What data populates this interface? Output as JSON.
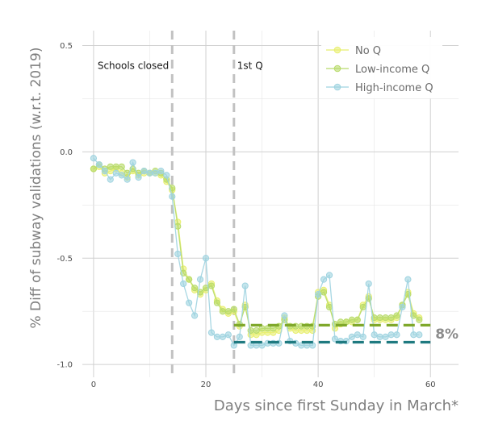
{
  "chart_data": {
    "type": "line",
    "xlabel": "Days since first Sunday in March*",
    "ylabel": "% Diff of subway validations (w.r.t. 2019)",
    "xlim": [
      -2,
      65
    ],
    "ylim": [
      -1.06,
      0.57
    ],
    "xticks": [
      0,
      20,
      40,
      60
    ],
    "xtick_labels": [
      "0",
      "20",
      "40",
      "60"
    ],
    "yticks": [
      -1.0,
      -0.5,
      0.0,
      0.5
    ],
    "ytick_labels": [
      "-1.0",
      "-0.5",
      "0.0",
      "0.5"
    ],
    "grid": true,
    "legend_position": "top-right",
    "vlines": [
      {
        "x": 14,
        "label": "Schools closed"
      },
      {
        "x": 25,
        "label": "1st Q"
      }
    ],
    "hlines": [
      {
        "y": -0.815,
        "x0": 25,
        "x1": 60,
        "color": "#7fa82b"
      },
      {
        "y": -0.895,
        "x0": 25,
        "x1": 60,
        "color": "#1f7a80"
      }
    ],
    "gap_label": "8%",
    "x": [
      0,
      1,
      2,
      3,
      4,
      5,
      6,
      7,
      8,
      9,
      10,
      11,
      12,
      13,
      14,
      15,
      16,
      17,
      18,
      19,
      20,
      21,
      22,
      23,
      24,
      25,
      26,
      27,
      28,
      29,
      30,
      31,
      32,
      33,
      34,
      35,
      36,
      37,
      38,
      39,
      40,
      41,
      42,
      43,
      44,
      45,
      46,
      47,
      48,
      49,
      50,
      51,
      52,
      53,
      54,
      55,
      56,
      57,
      58
    ],
    "series": [
      {
        "name": "No Q",
        "color": "#e8ef6e",
        "values": [
          -0.08,
          -0.07,
          -0.1,
          -0.09,
          -0.08,
          -0.1,
          -0.12,
          -0.09,
          -0.11,
          -0.1,
          -0.1,
          -0.1,
          -0.11,
          -0.14,
          -0.18,
          -0.33,
          -0.55,
          -0.6,
          -0.65,
          -0.67,
          -0.65,
          -0.62,
          -0.7,
          -0.74,
          -0.76,
          -0.75,
          -0.82,
          -0.72,
          -0.86,
          -0.86,
          -0.85,
          -0.85,
          -0.85,
          -0.84,
          -0.78,
          -0.83,
          -0.84,
          -0.84,
          -0.84,
          -0.84,
          -0.66,
          -0.65,
          -0.72,
          -0.83,
          -0.81,
          -0.8,
          -0.8,
          -0.79,
          -0.72,
          -0.68,
          -0.79,
          -0.79,
          -0.79,
          -0.79,
          -0.78,
          -0.72,
          -0.66,
          -0.76,
          -0.78
        ]
      },
      {
        "name": "Low-income Q",
        "color": "#b8db6a",
        "values": [
          -0.08,
          -0.06,
          -0.08,
          -0.07,
          -0.07,
          -0.07,
          -0.1,
          -0.08,
          -0.1,
          -0.09,
          -0.1,
          -0.09,
          -0.1,
          -0.13,
          -0.17,
          -0.35,
          -0.57,
          -0.6,
          -0.64,
          -0.66,
          -0.64,
          -0.63,
          -0.71,
          -0.75,
          -0.75,
          -0.74,
          -0.81,
          -0.73,
          -0.84,
          -0.84,
          -0.83,
          -0.83,
          -0.83,
          -0.82,
          -0.79,
          -0.82,
          -0.82,
          -0.82,
          -0.82,
          -0.82,
          -0.68,
          -0.66,
          -0.73,
          -0.81,
          -0.8,
          -0.8,
          -0.79,
          -0.79,
          -0.73,
          -0.69,
          -0.78,
          -0.78,
          -0.78,
          -0.78,
          -0.77,
          -0.72,
          -0.67,
          -0.77,
          -0.79
        ]
      },
      {
        "name": "High-income Q",
        "color": "#9fd3e0",
        "values": [
          -0.03,
          -0.06,
          -0.09,
          -0.13,
          -0.1,
          -0.11,
          -0.13,
          -0.05,
          -0.12,
          -0.09,
          -0.1,
          -0.1,
          -0.09,
          -0.11,
          -0.21,
          -0.48,
          -0.62,
          -0.71,
          -0.77,
          -0.6,
          -0.5,
          -0.85,
          -0.87,
          -0.87,
          -0.86,
          -0.91,
          -0.87,
          -0.63,
          -0.91,
          -0.91,
          -0.91,
          -0.9,
          -0.9,
          -0.9,
          -0.77,
          -0.89,
          -0.9,
          -0.91,
          -0.91,
          -0.91,
          -0.67,
          -0.6,
          -0.58,
          -0.88,
          -0.89,
          -0.89,
          -0.87,
          -0.86,
          -0.87,
          -0.62,
          -0.86,
          -0.87,
          -0.87,
          -0.86,
          -0.86,
          -0.73,
          -0.6,
          -0.86,
          -0.86
        ]
      }
    ]
  }
}
